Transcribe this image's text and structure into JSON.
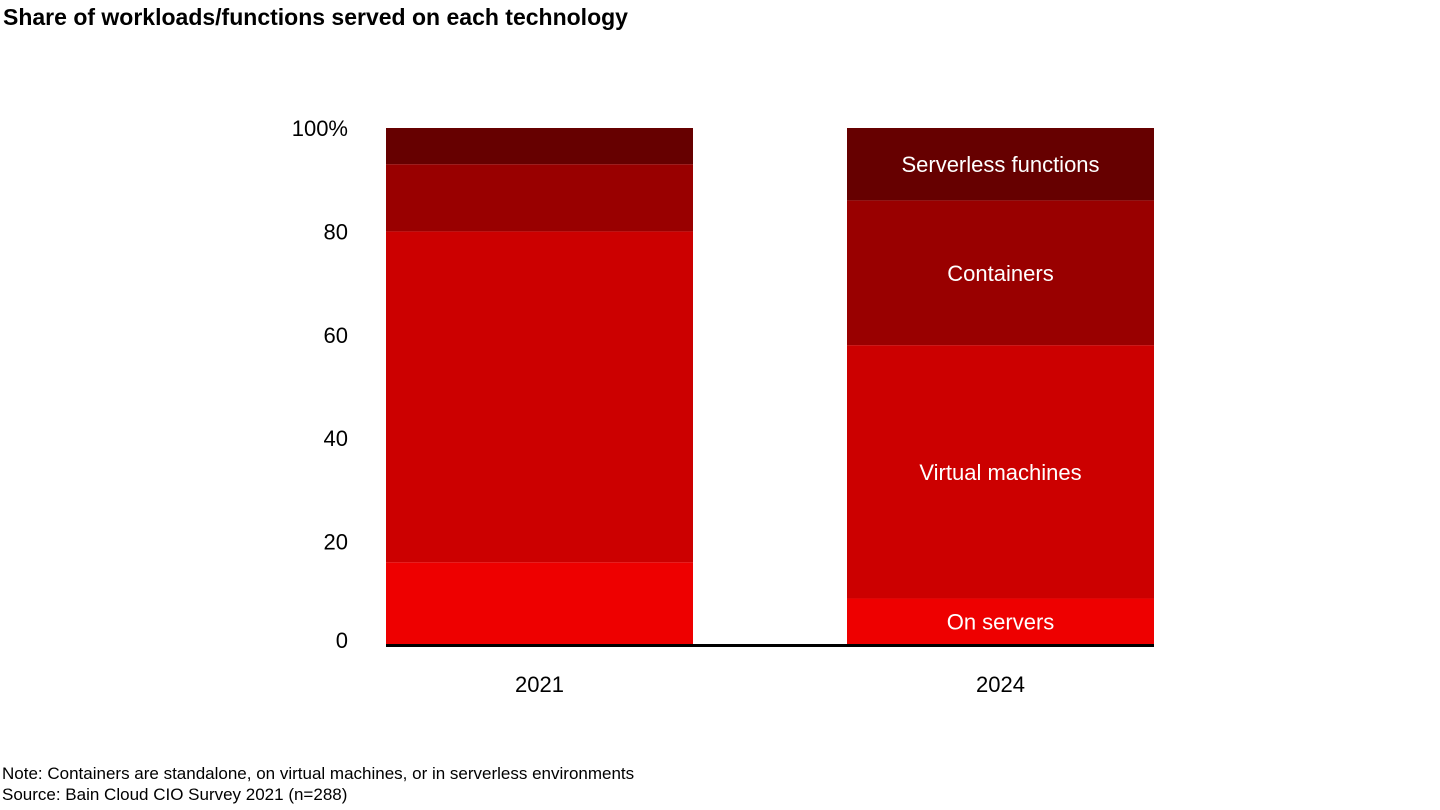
{
  "chart_data": {
    "type": "bar",
    "stacked": true,
    "title": "Share of workloads/functions served on each technology",
    "xlabel": "",
    "ylabel": "",
    "ylim": [
      0,
      100
    ],
    "y_ticks": [
      "0",
      "20",
      "40",
      "60",
      "80",
      "100%"
    ],
    "y_tick_values": [
      0,
      20,
      40,
      60,
      80,
      100
    ],
    "grid": false,
    "categories": [
      "2021",
      "2024"
    ],
    "series": [
      {
        "name": "On servers",
        "values": [
          16,
          9
        ],
        "color": "#ee0000"
      },
      {
        "name": "Virtual machines",
        "values": [
          64,
          49
        ],
        "color": "#cc0000"
      },
      {
        "name": "Containers",
        "values": [
          13,
          28
        ],
        "color": "#990000"
      },
      {
        "name": "Serverless functions",
        "values": [
          7,
          14
        ],
        "color": "#660000"
      }
    ],
    "legend": "inline labels on 2024 bar"
  },
  "notes": {
    "note": "Note: Containers are standalone, on virtual machines, or in serverless environments",
    "source": "Source: Bain Cloud CIO Survey 2021 (n=288)"
  }
}
